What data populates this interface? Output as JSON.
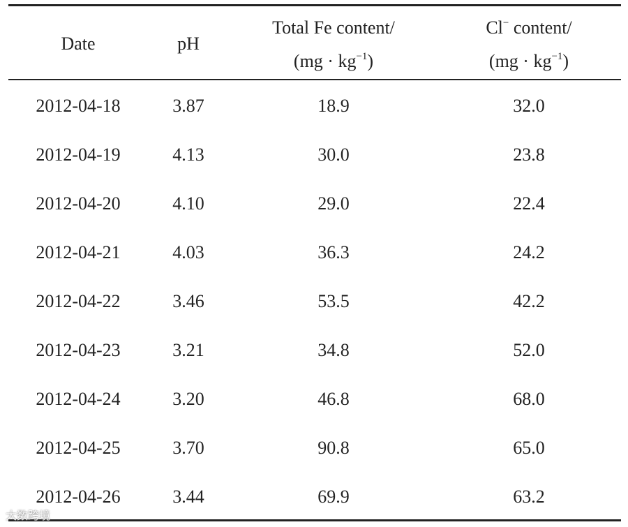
{
  "table": {
    "header": {
      "date": "Date",
      "ph": "pH",
      "fe": {
        "line1": "Total Fe content/",
        "unit_pre": "(mg · kg",
        "unit_sup": "−1",
        "unit_post": ")"
      },
      "cl": {
        "ion": "Cl",
        "ion_sup": "−",
        "line1_post": " content/",
        "unit_pre": "(mg · kg",
        "unit_sup": "−1",
        "unit_post": ")"
      }
    },
    "rows": [
      [
        "2012-04-18",
        "3.87",
        "18.9",
        "32.0"
      ],
      [
        "2012-04-19",
        "4.13",
        "30.0",
        "23.8"
      ],
      [
        "2012-04-20",
        "4.10",
        "29.0",
        "22.4"
      ],
      [
        "2012-04-21",
        "4.03",
        "36.3",
        "24.2"
      ],
      [
        "2012-04-22",
        "3.46",
        "53.5",
        "42.2"
      ],
      [
        "2012-04-23",
        "3.21",
        "34.8",
        "52.0"
      ],
      [
        "2012-04-24",
        "3.20",
        "46.8",
        "68.0"
      ],
      [
        "2012-04-25",
        "3.70",
        "90.8",
        "65.0"
      ],
      [
        "2012-04-26",
        "3.44",
        "69.9",
        "63.2"
      ]
    ]
  },
  "watermark": "大数跨境"
}
